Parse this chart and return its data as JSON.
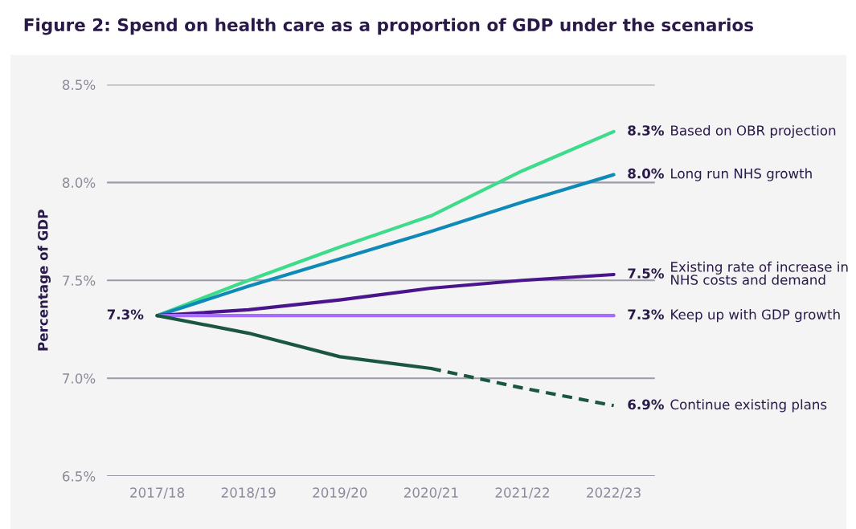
{
  "chart_data": {
    "type": "line",
    "title": "Figure 2: Spend on health care as a proportion of GDP under the scenarios",
    "ylabel": "Percentage of GDP",
    "categories": [
      "2017/18",
      "2018/19",
      "2019/20",
      "2020/21",
      "2021/22",
      "2022/23"
    ],
    "ylim": [
      6.5,
      8.5
    ],
    "yticks": [
      {
        "value": 6.5,
        "label": "6.5%"
      },
      {
        "value": 7.0,
        "label": "7.0%"
      },
      {
        "value": 7.5,
        "label": "7.5%"
      },
      {
        "value": 8.0,
        "label": "8.0%"
      },
      {
        "value": 8.5,
        "label": "8.5%"
      }
    ],
    "grid": "y",
    "legend": false,
    "marker": "none",
    "series": [
      {
        "name": "Based on OBR projection",
        "color": "#3ddc8a",
        "values": [
          7.32,
          7.5,
          7.67,
          7.83,
          8.06,
          8.26
        ],
        "value_labels": [
          null,
          null,
          null,
          null,
          null,
          "8.3%"
        ]
      },
      {
        "name": "Long run NHS growth",
        "color": "#0f8ab8",
        "values": [
          7.32,
          7.47,
          7.61,
          7.75,
          7.9,
          8.04
        ],
        "value_labels": [
          null,
          null,
          null,
          null,
          null,
          "8.0%"
        ]
      },
      {
        "name": "Existing rate of increase in\nNHS costs and demand",
        "color": "#4a148c",
        "values": [
          7.32,
          7.35,
          7.4,
          7.46,
          7.5,
          7.53
        ],
        "value_labels": [
          null,
          null,
          null,
          null,
          null,
          "7.5%"
        ]
      },
      {
        "name": "Keep up with GDP growth",
        "color": "#a66bff",
        "values": [
          7.32,
          7.32,
          7.32,
          7.32,
          7.32,
          7.32
        ],
        "value_labels": [
          null,
          null,
          null,
          null,
          null,
          "7.3%"
        ]
      },
      {
        "color": "#1b5640",
        "values": [
          7.32,
          7.23,
          7.11,
          7.05,
          null,
          null
        ]
      },
      {
        "name": "Continue existing plans",
        "color": "#1b5640",
        "line_style": "dashed",
        "values": [
          null,
          null,
          null,
          7.05,
          6.95,
          6.86
        ],
        "value_labels": [
          null,
          null,
          null,
          null,
          null,
          "6.9%"
        ]
      }
    ],
    "annotations": [
      {
        "text": "7.3%",
        "x": "2017/18",
        "y": 7.32
      }
    ]
  }
}
